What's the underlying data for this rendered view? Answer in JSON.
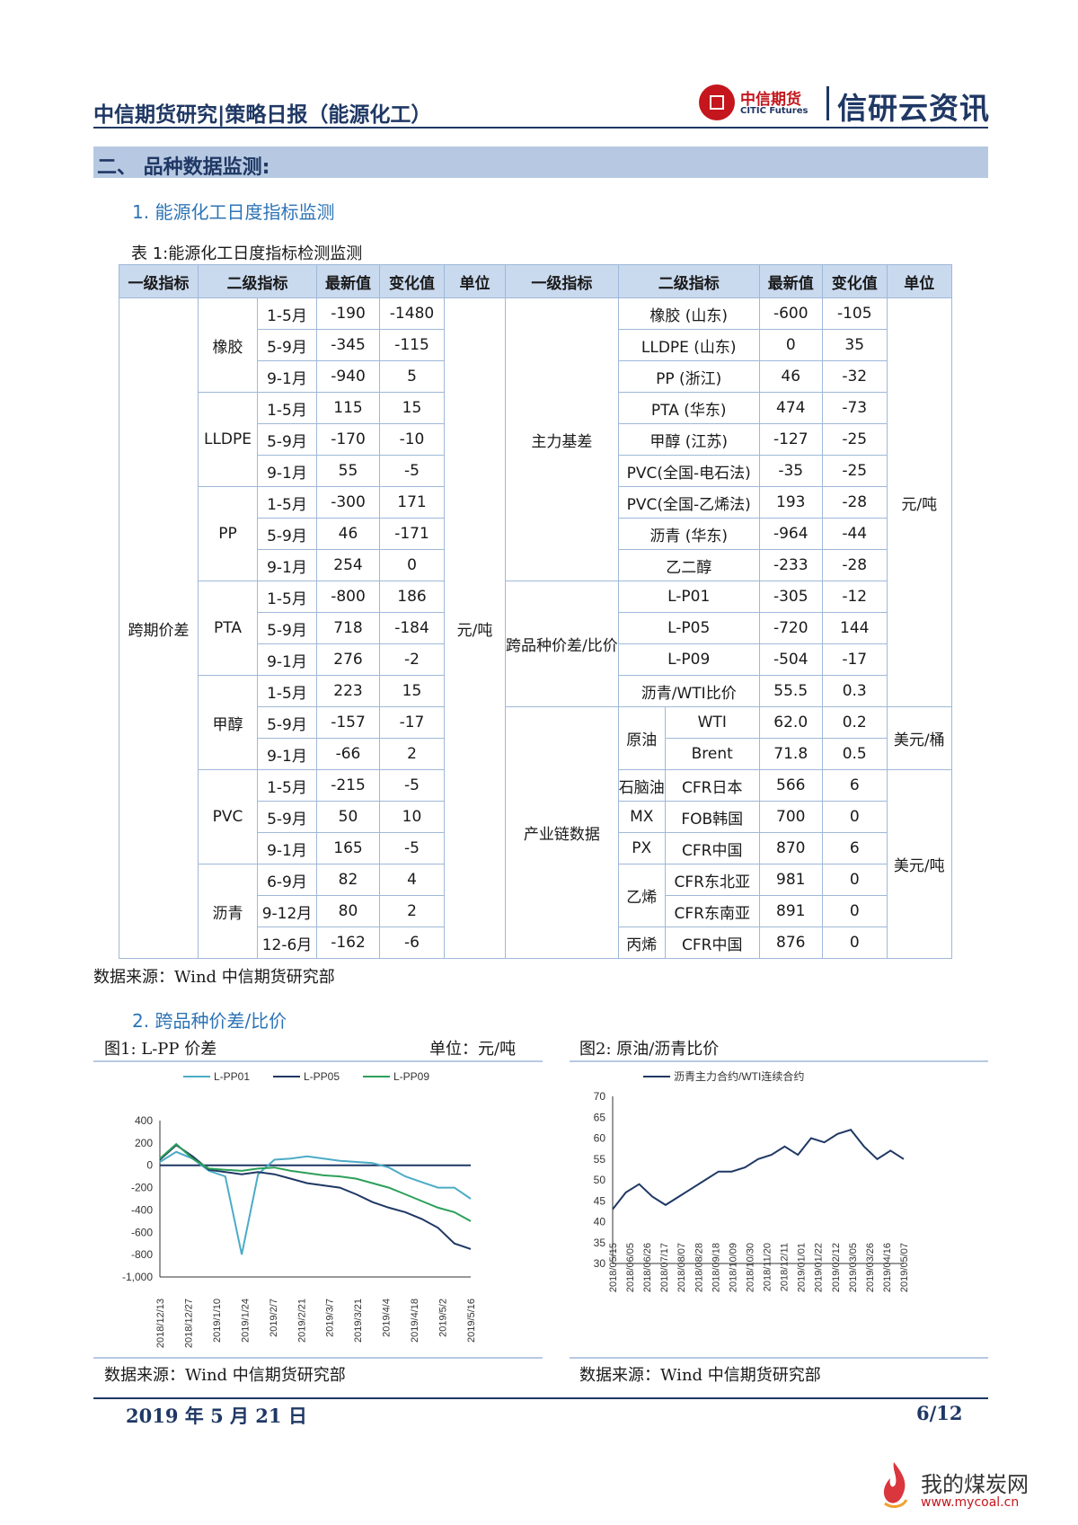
{
  "header": {
    "title": "中信期货研究|策略日报（能源化工）",
    "logo_cn": "中信期货",
    "logo_en": "CITIC Futures",
    "brand": "信研云资讯"
  },
  "section": {
    "title": "二、 品种数据监测:"
  },
  "sub1": "1.   能源化工日度指标监测",
  "table": {
    "caption": "表 1:能源化工日度指标检测监测",
    "headers": [
      "一级指标",
      "二级指标",
      "最新值",
      "变化值",
      "单位",
      "一级指标",
      "二级指标",
      "最新值",
      "变化值",
      "单位"
    ],
    "left": {
      "level1": "跨期价差",
      "unit": "元/吨",
      "groups": [
        {
          "name": "橡胶",
          "rows": [
            [
              "1-5月",
              "-190",
              "-1480"
            ],
            [
              "5-9月",
              "-345",
              "-115"
            ],
            [
              "9-1月",
              "-940",
              "5"
            ]
          ]
        },
        {
          "name": "LLDPE",
          "rows": [
            [
              "1-5月",
              "115",
              "15"
            ],
            [
              "5-9月",
              "-170",
              "-10"
            ],
            [
              "9-1月",
              "55",
              "-5"
            ]
          ]
        },
        {
          "name": "PP",
          "rows": [
            [
              "1-5月",
              "-300",
              "171"
            ],
            [
              "5-9月",
              "46",
              "-171"
            ],
            [
              "9-1月",
              "254",
              "0"
            ]
          ]
        },
        {
          "name": "PTA",
          "rows": [
            [
              "1-5月",
              "-800",
              "186"
            ],
            [
              "5-9月",
              "718",
              "-184"
            ],
            [
              "9-1月",
              "276",
              "-2"
            ]
          ]
        },
        {
          "name": "甲醇",
          "rows": [
            [
              "1-5月",
              "223",
              "15"
            ],
            [
              "5-9月",
              "-157",
              "-17"
            ],
            [
              "9-1月",
              "-66",
              "2"
            ]
          ]
        },
        {
          "name": "PVC",
          "rows": [
            [
              "1-5月",
              "-215",
              "-5"
            ],
            [
              "5-9月",
              "50",
              "10"
            ],
            [
              "9-1月",
              "165",
              "-5"
            ]
          ]
        },
        {
          "name": "沥青",
          "rows": [
            [
              "6-9月",
              "82",
              "4"
            ],
            [
              "9-12月",
              "80",
              "2"
            ],
            [
              "12-6月",
              "-162",
              "-6"
            ]
          ]
        }
      ]
    },
    "right": {
      "basis": {
        "label": "主力基差",
        "rows": [
          [
            "橡胶 (山东)",
            "-600",
            "-105"
          ],
          [
            "LLDPE (山东)",
            "0",
            "35"
          ],
          [
            "PP (浙江)",
            "46",
            "-32"
          ],
          [
            "PTA (华东)",
            "474",
            "-73"
          ],
          [
            "甲醇 (江苏)",
            "-127",
            "-25"
          ],
          [
            "PVC(全国-电石法)",
            "-35",
            "-25"
          ],
          [
            "PVC(全国-乙烯法)",
            "193",
            "-28"
          ],
          [
            "沥青 (华东)",
            "-964",
            "-44"
          ],
          [
            "乙二醇",
            "-233",
            "-28"
          ]
        ]
      },
      "spread": {
        "label": "跨品种价差/比价",
        "rows": [
          [
            "L-P01",
            "-305",
            "-12"
          ],
          [
            "L-P05",
            "-720",
            "144"
          ],
          [
            "L-P09",
            "-504",
            "-17"
          ],
          [
            "沥青/WTI比价",
            "55.5",
            "0.3"
          ]
        ]
      },
      "unit_ton": "元/吨",
      "chain": {
        "label": "产业链数据",
        "crude": {
          "name": "原油",
          "unit": "美元/桶",
          "rows": [
            [
              "WTI",
              "62.0",
              "0.2"
            ],
            [
              "Brent",
              "71.8",
              "0.5"
            ]
          ]
        },
        "unit_usd_ton": "美元/吨",
        "rows": [
          [
            "石脑油",
            "CFR日本",
            "566",
            "6"
          ],
          [
            "MX",
            "FOB韩国",
            "700",
            "0"
          ],
          [
            "PX",
            "CFR中国",
            "870",
            "6"
          ]
        ],
        "ethylene": {
          "name": "乙烯",
          "rows": [
            [
              "CFR东北亚",
              "981",
              "0"
            ],
            [
              "CFR东南亚",
              "891",
              "0"
            ]
          ]
        },
        "propylene": [
          "丙烯",
          "CFR中国",
          "876",
          "0"
        ]
      }
    },
    "source": "数据来源：Wind 中信期货研究部"
  },
  "sub2": "2.   跨品种价差/比价",
  "fig1": {
    "caption": "图1: L-PP 价差",
    "unit_label": "单位：元/吨",
    "source": "数据来源：Wind 中信期货研究部"
  },
  "fig2": {
    "caption": "图2: 原油/沥青比价",
    "source": "数据来源：Wind 中信期货研究部"
  },
  "chart_data": [
    {
      "type": "line",
      "ylim": [
        -1000,
        400
      ],
      "yticks": [
        "400",
        "200",
        "0",
        "-200",
        "-400",
        "-600",
        "-800",
        "-1,000"
      ],
      "xticks": [
        "2018/12/13",
        "2018/12/27",
        "2019/1/10",
        "2019/1/24",
        "2019/2/7",
        "2019/2/21",
        "2019/3/7",
        "2019/3/21",
        "2019/4/4",
        "2019/4/18",
        "2019/5/2",
        "2019/5/16"
      ],
      "legend_position": "top",
      "series": [
        {
          "name": "L-PP01",
          "color": "#4bacc6",
          "values": [
            30,
            120,
            60,
            -50,
            -100,
            -800,
            -80,
            50,
            60,
            80,
            60,
            40,
            30,
            20,
            -20,
            -100,
            -150,
            -200,
            -200,
            -300
          ]
        },
        {
          "name": "L-PP05",
          "color": "#1f3864",
          "values": [
            50,
            180,
            80,
            -40,
            -60,
            -80,
            -60,
            -80,
            -120,
            -160,
            -180,
            -200,
            -260,
            -330,
            -380,
            -420,
            -480,
            -560,
            -700,
            -750
          ]
        },
        {
          "name": "L-PP09",
          "color": "#2ca05a",
          "values": [
            60,
            190,
            60,
            -30,
            -40,
            -50,
            -30,
            -20,
            -50,
            -70,
            -90,
            -100,
            -120,
            -160,
            -200,
            -260,
            -320,
            -380,
            -420,
            -500
          ]
        }
      ]
    },
    {
      "type": "line",
      "ylim": [
        30,
        70
      ],
      "yticks": [
        "70",
        "65",
        "60",
        "55",
        "50",
        "45",
        "40",
        "35",
        "30"
      ],
      "xticks": [
        "2018/05/15",
        "2018/06/05",
        "2018/06/26",
        "2018/07/17",
        "2018/08/07",
        "2018/08/28",
        "2018/09/18",
        "2018/10/09",
        "2018/10/30",
        "2018/11/20",
        "2018/12/11",
        "2019/01/01",
        "2019/01/22",
        "2019/02/12",
        "2019/03/05",
        "2019/03/26",
        "2019/04/16",
        "2019/05/07"
      ],
      "legend_position": "top",
      "series": [
        {
          "name": "沥青主力合约/WTI连续合约",
          "color": "#1f3864",
          "values": [
            43,
            47,
            49,
            46,
            44,
            46,
            48,
            50,
            52,
            52,
            53,
            55,
            56,
            58,
            56,
            60,
            59,
            61,
            62,
            58,
            55,
            57,
            55
          ]
        }
      ]
    }
  ],
  "footer": {
    "date": "2019 年 5 月 21 日",
    "page": "6/12"
  },
  "watermark": {
    "text": "我的煤炭网",
    "url": "www.mycoal.cn"
  }
}
